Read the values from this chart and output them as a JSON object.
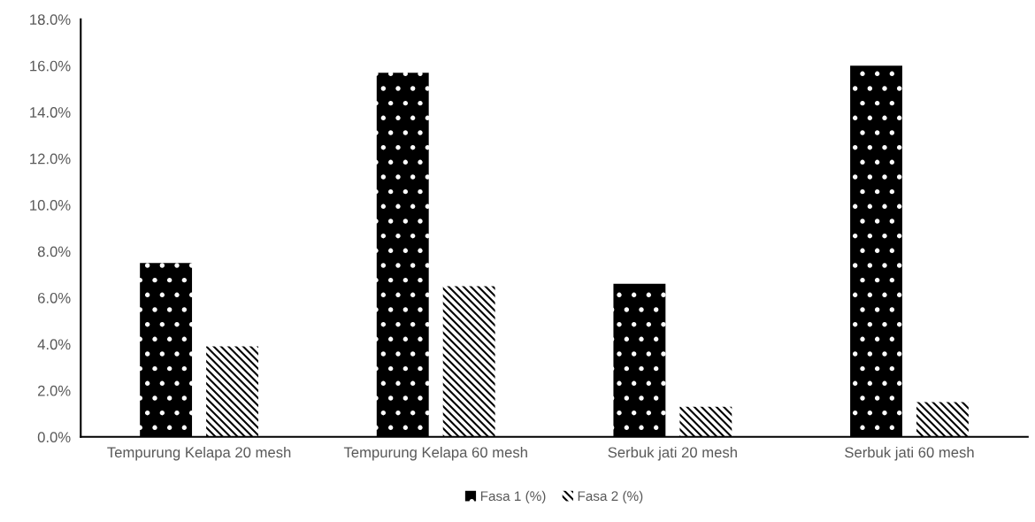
{
  "chart_data": {
    "type": "bar",
    "categories": [
      "Tempurung Kelapa 20 mesh",
      "Tempurung Kelapa 60 mesh",
      "Serbuk jati 20 mesh",
      "Serbuk jati 60 mesh"
    ],
    "series": [
      {
        "name": "Fasa 1 (%)",
        "color": "#000000",
        "values": [
          7.5,
          15.7,
          6.6,
          16.0
        ]
      },
      {
        "name": "Fasa 2 (%)",
        "color": "#000000",
        "values": [
          3.9,
          6.5,
          1.3,
          1.5
        ]
      }
    ],
    "ylim": [
      0,
      18
    ],
    "yticks": [
      {
        "value": 0,
        "label": "0.0%"
      },
      {
        "value": 2,
        "label": "2.0%"
      },
      {
        "value": 4,
        "label": "4.0%"
      },
      {
        "value": 6,
        "label": "6.0%"
      },
      {
        "value": 8,
        "label": "8.0%"
      },
      {
        "value": 10,
        "label": "10.0%"
      },
      {
        "value": 12,
        "label": "12.0%"
      },
      {
        "value": 14,
        "label": "14.0%"
      },
      {
        "value": 16,
        "label": "16.0%"
      },
      {
        "value": 18,
        "label": "18.0%"
      }
    ],
    "legend": "bottom"
  }
}
